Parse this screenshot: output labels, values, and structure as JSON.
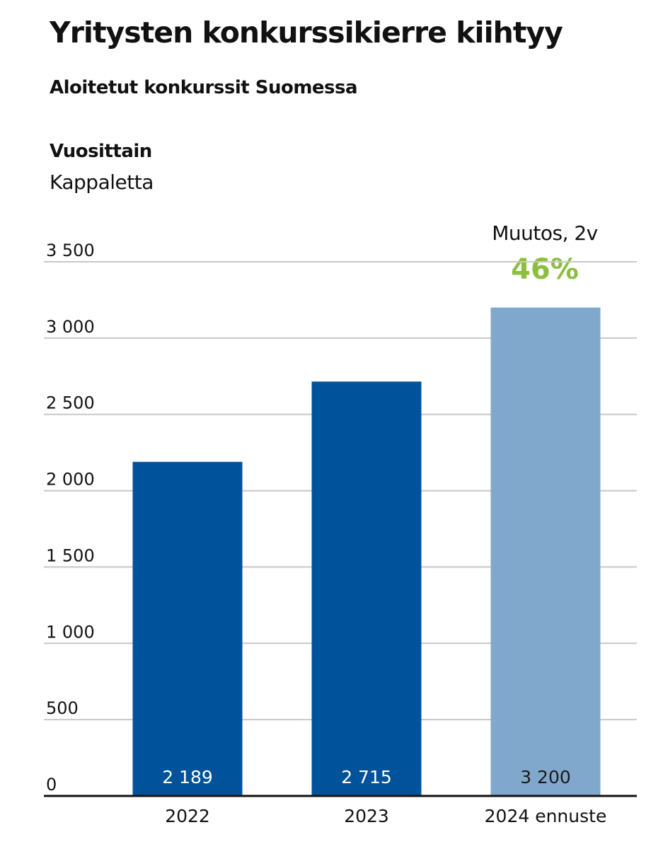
{
  "header": {
    "title": "Yritysten konkurssikierre kiihtyy",
    "subtitle": "Aloitetut konkurssit Suomessa",
    "frequency": "Vuosittain",
    "unit": "Kappaletta"
  },
  "annotation": {
    "label": "Muutos, 2v",
    "value": "46%"
  },
  "chart_data": {
    "type": "bar",
    "title": "Aloitetut konkurssit Suomessa",
    "xlabel": "",
    "ylabel": "Kappaletta",
    "ylim": [
      0,
      3500
    ],
    "grid": true,
    "categories": [
      "2022",
      "2023",
      "2024 ennuste"
    ],
    "values": [
      2189,
      2715,
      3200
    ],
    "value_labels": [
      "2 189",
      "2 715",
      "3 200"
    ],
    "y_ticks": [
      0,
      500,
      1000,
      1500,
      2000,
      2500,
      3000,
      3500
    ],
    "y_tick_labels": [
      "0",
      "500",
      "1 000",
      "1 500",
      "2 000",
      "2 500",
      "3 000",
      "3 500"
    ],
    "colors": {
      "actual": "#00529b",
      "forecast": "#80a8cc",
      "label_on_actual": "#ffffff",
      "label_on_forecast": "#1a1a1a",
      "grid": "#c8c8c8",
      "axis": "#111111",
      "highlight": "#8cbf3f"
    },
    "forecast_index": 2
  }
}
